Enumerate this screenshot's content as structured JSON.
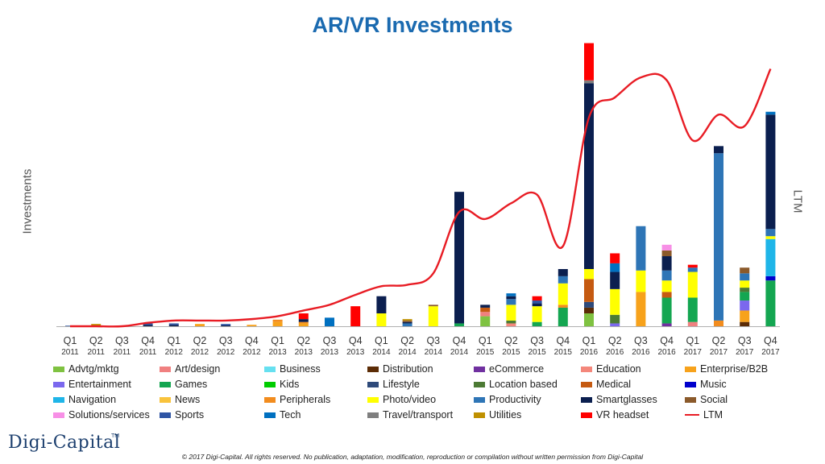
{
  "header": {
    "title": "AR/VR Investments"
  },
  "axes": {
    "left_label": "Investments",
    "right_label": "LTM"
  },
  "logo": {
    "text": "Digi-Capital",
    "tm": "TM"
  },
  "footer": {
    "copyright": "© 2017 Digi-Capital. All rights reserved. No publication, adaptation, modification, reproduction or compilation without written permission from Digi-Capital"
  },
  "chart_data": {
    "type": "bar",
    "stacked": true,
    "title": "AR/VR Investments",
    "ylabel": "Investments",
    "y2label": "LTM",
    "ylim": [
      0,
      100
    ],
    "y2lim": [
      0,
      100
    ],
    "legend_position": "bottom",
    "categories": [
      [
        "Q1",
        "2011"
      ],
      [
        "Q2",
        "2011"
      ],
      [
        "Q3",
        "2011"
      ],
      [
        "Q4",
        "2011"
      ],
      [
        "Q1",
        "2012"
      ],
      [
        "Q2",
        "2012"
      ],
      [
        "Q3",
        "2012"
      ],
      [
        "Q4",
        "2012"
      ],
      [
        "Q1",
        "2013"
      ],
      [
        "Q2",
        "2013"
      ],
      [
        "Q3",
        "2013"
      ],
      [
        "Q4",
        "2013"
      ],
      [
        "Q1",
        "2014"
      ],
      [
        "Q2",
        "2014"
      ],
      [
        "Q3",
        "2014"
      ],
      [
        "Q4",
        "2014"
      ],
      [
        "Q1",
        "2015"
      ],
      [
        "Q2",
        "2015"
      ],
      [
        "Q3",
        "2015"
      ],
      [
        "Q4",
        "2015"
      ],
      [
        "Q1",
        "2016"
      ],
      [
        "Q2",
        "2016"
      ],
      [
        "Q3",
        "2016"
      ],
      [
        "Q4",
        "2016"
      ],
      [
        "Q1",
        "2017"
      ],
      [
        "Q2",
        "2017"
      ],
      [
        "Q3",
        "2017"
      ],
      [
        "Q4",
        "2017"
      ]
    ],
    "series": [
      {
        "name": "Advtg/mktg",
        "color": "#7fc241",
        "values": [
          0,
          0,
          0,
          0,
          0,
          0,
          0,
          0,
          0,
          0,
          0,
          0,
          0,
          0,
          0,
          0,
          3.5,
          0,
          0,
          0,
          4.5,
          0,
          0,
          0,
          0,
          0,
          0,
          0
        ]
      },
      {
        "name": "Art/design",
        "color": "#f08080",
        "values": [
          0,
          0,
          0,
          0,
          0,
          0,
          0,
          0,
          0,
          0,
          0,
          0,
          0,
          0,
          0,
          0,
          1.5,
          0,
          0,
          0,
          0,
          0,
          0,
          0,
          1.5,
          0,
          0,
          0
        ]
      },
      {
        "name": "Business",
        "color": "#66e0f0",
        "values": [
          0,
          0,
          0,
          0,
          0,
          0,
          0,
          0,
          0,
          0,
          0,
          0,
          0,
          0,
          0,
          0,
          0,
          0,
          0,
          0,
          0,
          0,
          0,
          0,
          0,
          0,
          0,
          0
        ]
      },
      {
        "name": "Distribution",
        "color": "#5c2c06",
        "values": [
          0,
          0,
          0,
          0,
          0,
          0,
          0,
          0,
          0,
          0,
          0,
          0,
          0,
          0,
          0,
          0,
          0,
          0,
          0,
          0,
          2,
          0,
          0,
          0,
          0,
          0,
          1.5,
          0
        ]
      },
      {
        "name": "eCommerce",
        "color": "#7030a0",
        "values": [
          0,
          0,
          0,
          0,
          0,
          0,
          0,
          0,
          0,
          0,
          0,
          0,
          0,
          0,
          0,
          0,
          0,
          0,
          0,
          0,
          0,
          0,
          0,
          1,
          0,
          0,
          0,
          0
        ]
      },
      {
        "name": "Education",
        "color": "#f4877b",
        "values": [
          0,
          0,
          0,
          0,
          0,
          0,
          0,
          0,
          0,
          0,
          0,
          0,
          0,
          0,
          0,
          0,
          0,
          1,
          0,
          0,
          0,
          0,
          0,
          0,
          0,
          0,
          0,
          0
        ]
      },
      {
        "name": "Enterprise/B2B",
        "color": "#f7a21b",
        "values": [
          0,
          0,
          0,
          0,
          0,
          0.8,
          0,
          0.5,
          1.5,
          1,
          0,
          0,
          0,
          0,
          0,
          0,
          0,
          0,
          0,
          0,
          0,
          0,
          12,
          0,
          0,
          0,
          4,
          0
        ]
      },
      {
        "name": "Entertainment",
        "color": "#7b68ee",
        "values": [
          0,
          0,
          0,
          0,
          0,
          0,
          0,
          0,
          0,
          0,
          0,
          0,
          0,
          0,
          0,
          0,
          0,
          0,
          0,
          0,
          0,
          1,
          0,
          0,
          0,
          0,
          3.5,
          0
        ]
      },
      {
        "name": "Games",
        "color": "#14a651",
        "values": [
          0,
          0,
          0,
          0,
          0,
          0,
          0,
          0,
          0,
          0,
          0,
          0,
          0,
          0,
          0,
          1,
          0,
          0,
          1.5,
          6.5,
          0,
          0,
          0,
          9,
          8.5,
          0,
          3,
          16
        ]
      },
      {
        "name": "Kids",
        "color": "#00cc00",
        "values": [
          0,
          0,
          0,
          0,
          0,
          0,
          0,
          0,
          0,
          0,
          0,
          0,
          0,
          0,
          0,
          0,
          0,
          0,
          0,
          0,
          0,
          0,
          0,
          0,
          0,
          0,
          0,
          0
        ]
      },
      {
        "name": "Lifestyle",
        "color": "#2e4a7a",
        "values": [
          0,
          0,
          0,
          0,
          0,
          0,
          0,
          0,
          0,
          0,
          0,
          0,
          0,
          0,
          0,
          0,
          0,
          0,
          0,
          0,
          2,
          0,
          0,
          0,
          0,
          0,
          0,
          0
        ]
      },
      {
        "name": "Location based",
        "color": "#4c7a34",
        "values": [
          0,
          0,
          0,
          0,
          0,
          0,
          0,
          0,
          0,
          0,
          0,
          0,
          0,
          0,
          0,
          0,
          0,
          1,
          0,
          0,
          0,
          3,
          0,
          0,
          0,
          0,
          1.5,
          0
        ]
      },
      {
        "name": "Medical",
        "color": "#c55a11",
        "values": [
          0,
          0,
          0,
          0,
          0,
          0,
          0,
          0,
          0,
          0,
          0,
          0,
          0,
          0,
          0,
          0,
          1.5,
          0,
          0,
          0,
          8,
          0,
          0,
          2,
          0,
          0,
          0,
          0
        ]
      },
      {
        "name": "Music",
        "color": "#0000cc",
        "values": [
          0,
          0,
          0,
          0,
          0,
          0,
          0,
          0,
          0,
          0,
          0,
          0,
          0,
          0,
          0,
          0,
          0,
          0,
          0,
          0,
          0,
          0,
          0,
          0,
          0,
          0,
          0,
          1.5
        ]
      },
      {
        "name": "Navigation",
        "color": "#1fb5e8",
        "values": [
          0,
          0,
          0,
          0,
          0,
          0,
          0,
          0,
          0,
          0,
          0,
          0,
          0,
          0,
          0,
          0,
          0,
          0,
          0,
          0,
          0,
          0,
          0,
          0,
          0,
          0,
          0,
          13
        ]
      },
      {
        "name": "News",
        "color": "#f9c33c",
        "values": [
          0,
          0,
          0,
          0,
          0,
          0,
          0,
          0,
          0,
          0,
          0,
          0,
          0,
          0,
          0,
          0,
          0,
          0,
          0,
          0,
          0,
          0,
          0,
          0,
          0,
          0,
          0,
          0
        ]
      },
      {
        "name": "Peripherals",
        "color": "#f28c1e",
        "values": [
          0,
          0,
          0,
          0,
          0,
          0,
          0,
          0,
          0.8,
          0.5,
          0,
          0,
          0,
          0,
          0,
          0,
          0,
          0,
          0,
          1,
          0,
          0,
          0,
          0,
          0,
          2,
          0,
          0
        ]
      },
      {
        "name": "Photo/video",
        "color": "#ffff00",
        "values": [
          0,
          0,
          0,
          0,
          0,
          0,
          0,
          0,
          0,
          0,
          0,
          0,
          4.5,
          0,
          7,
          0,
          0,
          5.5,
          5.5,
          7.5,
          3.5,
          9,
          7.5,
          4,
          9,
          0,
          2.5,
          1
        ]
      },
      {
        "name": "Productivity",
        "color": "#2e75b6",
        "values": [
          0,
          0,
          0,
          0,
          0,
          0,
          0,
          0,
          0,
          0,
          0,
          0,
          0,
          1,
          0,
          0,
          0,
          2,
          0,
          2.5,
          0,
          0,
          15.5,
          3.5,
          1.5,
          58.5,
          2.5,
          2.5
        ]
      },
      {
        "name": "Smartglasses",
        "color": "#0b1f4f",
        "values": [
          0,
          0,
          0.2,
          0.5,
          0.5,
          0,
          0.3,
          0,
          0,
          1,
          0,
          0,
          6,
          0.5,
          0,
          46,
          1,
          1,
          1,
          2.5,
          65,
          6,
          0,
          5,
          0,
          2.5,
          0,
          40
        ]
      },
      {
        "name": "Social",
        "color": "#8b5a2b",
        "values": [
          0,
          0,
          0,
          0,
          0,
          0,
          0,
          0,
          0,
          0,
          0,
          0,
          0,
          0.5,
          0.5,
          0,
          0,
          0,
          0,
          0,
          0,
          0,
          0,
          2,
          0,
          0,
          2,
          0
        ]
      },
      {
        "name": "Solutions/services",
        "color": "#f78fe6",
        "values": [
          0,
          0,
          0,
          0,
          0,
          0,
          0,
          0,
          0,
          0,
          0,
          0,
          0,
          0,
          0,
          0,
          0,
          0,
          0,
          0,
          0,
          0,
          0,
          2,
          0,
          0,
          0,
          0
        ]
      },
      {
        "name": "Sports",
        "color": "#2f55a4",
        "values": [
          0.2,
          0,
          0,
          0.5,
          0.5,
          0,
          0.5,
          0,
          0,
          0,
          0,
          0,
          0,
          0,
          0,
          0,
          0,
          0,
          1,
          0,
          0,
          0,
          0,
          0,
          0,
          0,
          0,
          0
        ]
      },
      {
        "name": "Tech",
        "color": "#0070c0",
        "values": [
          0,
          0,
          0,
          0,
          0,
          0,
          0,
          0,
          0,
          0,
          3,
          0,
          0,
          0,
          0,
          0,
          0,
          1,
          0,
          0,
          0,
          3,
          0,
          0,
          0,
          0,
          0,
          1
        ]
      },
      {
        "name": "Travel/transport",
        "color": "#7f7f7f",
        "values": [
          0,
          0,
          0,
          0,
          0,
          0,
          0,
          0,
          0,
          0,
          0,
          0,
          0,
          0,
          0,
          0,
          0,
          0,
          0,
          0,
          1,
          0,
          0,
          0,
          0,
          0,
          0,
          0
        ]
      },
      {
        "name": "Utilities",
        "color": "#bf9000",
        "values": [
          0,
          0.8,
          0,
          0,
          0,
          0,
          0,
          0,
          0,
          0,
          0,
          0,
          0,
          0.5,
          0,
          0,
          0,
          0,
          0,
          0,
          0,
          0,
          0,
          0,
          0,
          0,
          0,
          0
        ]
      },
      {
        "name": "VR headset",
        "color": "#ff0000",
        "values": [
          0,
          0,
          0,
          0,
          0,
          0,
          0,
          0,
          0,
          2,
          0,
          7,
          0,
          0,
          0,
          0,
          0,
          0,
          1.5,
          0,
          13,
          3.5,
          0,
          0,
          1,
          0,
          0,
          0
        ]
      }
    ],
    "line": {
      "name": "LTM",
      "color": "#e81c24",
      "values": [
        0,
        0,
        0,
        1.2,
        2,
        2,
        2,
        2.5,
        3.5,
        5.5,
        7.5,
        11,
        14,
        14.5,
        18.5,
        40,
        37.5,
        43,
        46,
        28,
        73,
        80,
        87,
        86,
        65,
        74,
        70,
        90
      ]
    },
    "legend_order": [
      "Advtg/mktg",
      "Art/design",
      "Business",
      "Distribution",
      "eCommerce",
      "Education",
      "Enterprise/B2B",
      "Entertainment",
      "Games",
      "Kids",
      "Lifestyle",
      "Location based",
      "Medical",
      "Music",
      "Navigation",
      "News",
      "Peripherals",
      "Photo/video",
      "Productivity",
      "Smartglasses",
      "Social",
      "Solutions/services",
      "Sports",
      "Tech",
      "Travel/transport",
      "Utilities",
      "VR headset",
      "LTM"
    ]
  }
}
